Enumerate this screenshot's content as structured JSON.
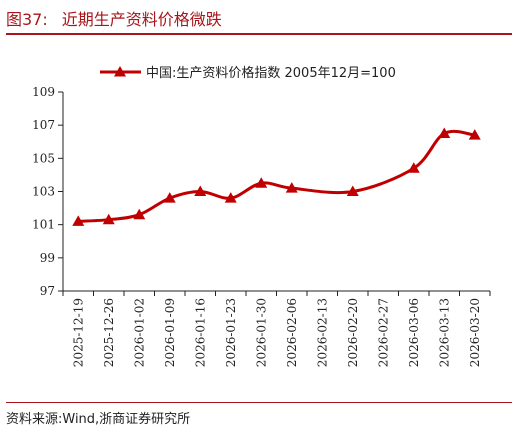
{
  "header": {
    "figure_number": "图37:",
    "title": "近期生产资料价格微跌"
  },
  "footer": {
    "source": "资料来源:Wind,浙商证券研究所"
  },
  "colors": {
    "accent": "#a8161b",
    "series": "#c00000",
    "axis": "#222222"
  },
  "chart_data": {
    "type": "line",
    "title": "",
    "xlabel": "",
    "ylabel": "",
    "ylim": [
      97,
      109
    ],
    "yticks": [
      97,
      99,
      101,
      103,
      105,
      107,
      109
    ],
    "grid": false,
    "legend": "top-center",
    "x_labels": [
      "2025-12-19",
      "2025-12-26",
      "2026-01-02",
      "2026-01-09",
      "2026-01-16",
      "2026-01-23",
      "2026-01-30",
      "2026-02-06",
      "2026-02-13",
      "2026-02-20",
      "2026-02-27",
      "2026-03-06",
      "2026-03-13",
      "2026-03-20"
    ],
    "series": [
      {
        "name": "中国:生产资料价格指数 2005年12月=100",
        "color": "#c00000",
        "marker": "triangle",
        "values": [
          101.2,
          101.3,
          101.6,
          102.6,
          103.0,
          102.6,
          103.5,
          103.2,
          null,
          103.0,
          null,
          104.4,
          106.5,
          106.4
        ]
      }
    ]
  }
}
